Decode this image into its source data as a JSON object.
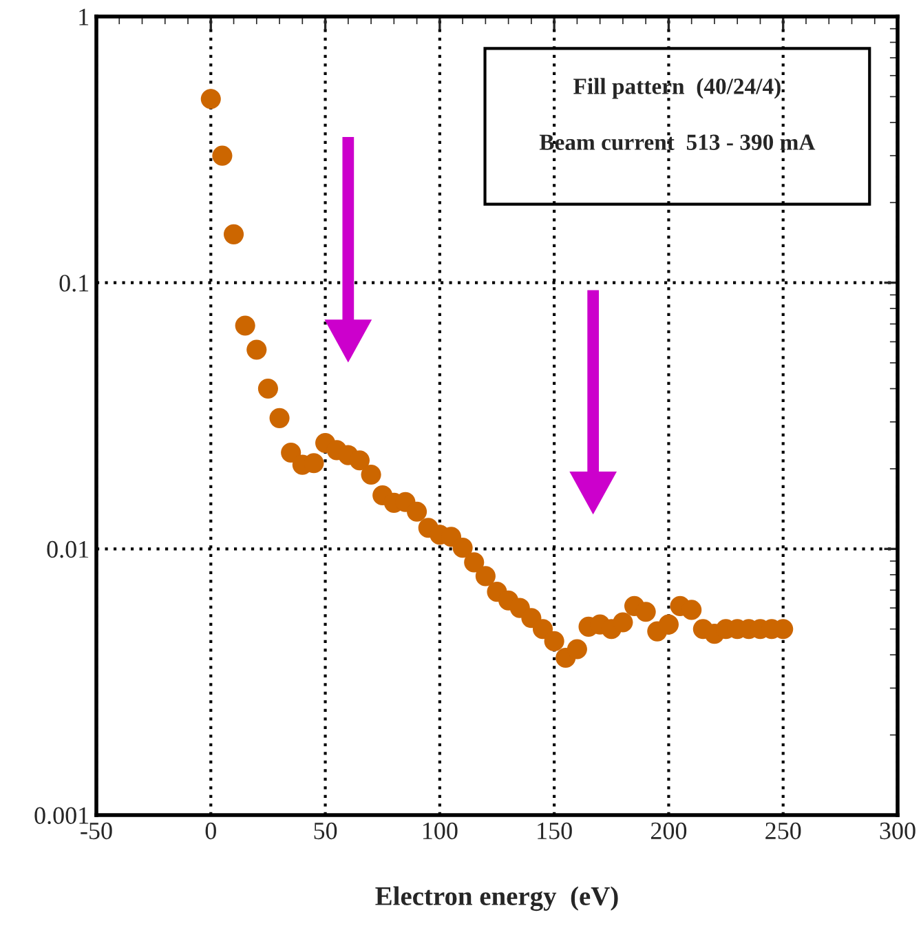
{
  "chart_data": {
    "type": "scatter",
    "xlabel": "Electron energy  (eV)",
    "annotations": [
      "Fill pattern  (40/24/4)",
      "Beam current  513 - 390 mA"
    ],
    "x": [
      0,
      5,
      10,
      15,
      20,
      25,
      30,
      35,
      40,
      45,
      50,
      55,
      60,
      65,
      70,
      75,
      80,
      85,
      90,
      95,
      100,
      105,
      110,
      115,
      120,
      125,
      130,
      135,
      140,
      145,
      150,
      155,
      160,
      165,
      170,
      175,
      180,
      185,
      190,
      195,
      200,
      205,
      210,
      215,
      220,
      225,
      230,
      235,
      240,
      245,
      250
    ],
    "series": [
      {
        "color": "#cc6600",
        "values": [
          0.49,
          0.3,
          0.152,
          0.069,
          0.056,
          0.04,
          0.031,
          0.023,
          0.0207,
          0.021,
          0.025,
          0.0235,
          0.0225,
          0.0215,
          0.019,
          0.0159,
          0.0149,
          0.015,
          0.0138,
          0.012,
          0.0113,
          0.0111,
          0.0101,
          0.0089,
          0.0079,
          0.0069,
          0.0064,
          0.006,
          0.0055,
          0.005,
          0.0045,
          0.0039,
          0.0042,
          0.0051,
          0.0052,
          0.005,
          0.0053,
          0.0061,
          0.0058,
          0.0049,
          0.0052,
          0.0061,
          0.0059,
          0.005,
          0.0048,
          0.005,
          0.005,
          0.005,
          0.005,
          0.005,
          0.005
        ]
      }
    ],
    "log": "y",
    "xlim": [
      -50,
      300
    ],
    "xticks": [
      -50,
      0,
      50,
      100,
      150,
      200,
      250,
      300
    ],
    "ylim": [
      0.001,
      1
    ],
    "yticks": [
      0.001,
      0.01,
      0.1,
      1
    ],
    "grid": true,
    "marker": "circle",
    "legend": false
  }
}
